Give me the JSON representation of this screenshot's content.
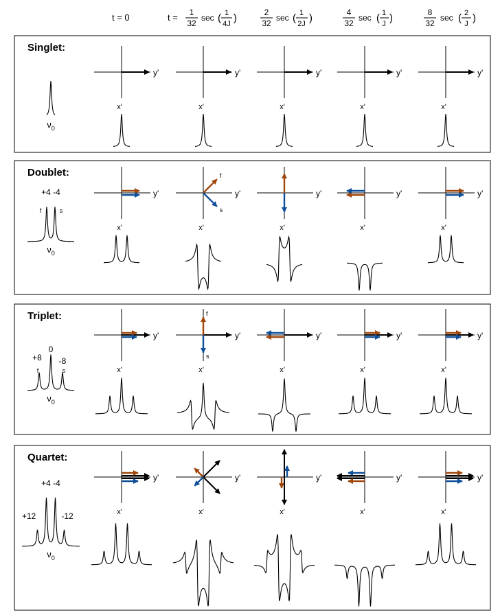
{
  "header": {
    "col0": "t = 0",
    "col1": {
      "prefix": "t = ",
      "num": "1",
      "den": "32",
      "unit": "sec",
      "pnum": "1",
      "pden": "4J"
    },
    "col2": {
      "num": "2",
      "den": "32",
      "unit": "sec",
      "pnum": "1",
      "pden": "2J"
    },
    "col3": {
      "num": "4",
      "den": "32",
      "unit": "sec",
      "pnum": "1",
      "pden": "J"
    },
    "col4": {
      "num": "8",
      "den": "32",
      "unit": "sec",
      "pnum": "2",
      "pden": "J"
    }
  },
  "axis_labels": {
    "y": "y'",
    "x": "x'"
  },
  "colors": {
    "fast": "#a0460a",
    "slow": "#0f4f9a",
    "total": "#000000"
  },
  "panels": [
    {
      "id": "singlet",
      "title": "Singlet:",
      "reference": {
        "center_label": "ν0",
        "intensity_labels": []
      },
      "vectors": [
        [
          {
            "kind": "total",
            "angle": 0,
            "len": 40
          }
        ],
        [
          {
            "kind": "total",
            "angle": 0,
            "len": 40
          }
        ],
        [
          {
            "kind": "total",
            "angle": 0,
            "len": 40
          }
        ],
        [
          {
            "kind": "total",
            "angle": 0,
            "len": 40
          }
        ],
        [
          {
            "kind": "total",
            "angle": 0,
            "len": 40
          }
        ]
      ],
      "spectra": [
        [
          {
            "x": 0,
            "h": 1
          }
        ],
        [
          {
            "x": 0,
            "h": 1
          }
        ],
        [
          {
            "x": 0,
            "h": 1
          }
        ],
        [
          {
            "x": 0,
            "h": 1
          }
        ],
        [
          {
            "x": 0,
            "h": 1
          }
        ]
      ]
    },
    {
      "id": "doublet",
      "title": "Doublet:",
      "reference": {
        "center_label": "ν0",
        "top_label": "+4 -4",
        "line_labels": [
          "f",
          "s"
        ]
      },
      "vectors": [
        [
          {
            "kind": "fast",
            "angle": 0,
            "len": 26,
            "off": -3
          },
          {
            "kind": "slow",
            "angle": 0,
            "len": 26,
            "off": 3
          }
        ],
        [
          {
            "kind": "fast",
            "angle": 45,
            "len": 28,
            "label": "f"
          },
          {
            "kind": "slow",
            "angle": -45,
            "len": 28,
            "label": "s"
          }
        ],
        [
          {
            "kind": "fast",
            "angle": 90,
            "len": 28
          },
          {
            "kind": "slow",
            "angle": -90,
            "len": 28
          }
        ],
        [
          {
            "kind": "fast",
            "angle": 180,
            "len": 26,
            "off": -3
          },
          {
            "kind": "slow",
            "angle": 180,
            "len": 26,
            "off": 3
          }
        ],
        [
          {
            "kind": "fast",
            "angle": 0,
            "len": 26,
            "off": -3
          },
          {
            "kind": "slow",
            "angle": 0,
            "len": 26,
            "off": 3
          }
        ]
      ],
      "spectra": [
        [
          {
            "x": -1,
            "h": 1
          },
          {
            "x": 1,
            "h": 1
          }
        ],
        [
          {
            "x": -1,
            "h": 1,
            "disp": 1
          },
          {
            "x": 1,
            "h": 1,
            "disp": -1
          }
        ],
        [
          {
            "x": -1,
            "h": 1,
            "disp": -1
          },
          {
            "x": 1,
            "h": 1,
            "disp": 1
          }
        ],
        [
          {
            "x": -1,
            "h": -1
          },
          {
            "x": 1,
            "h": -1
          }
        ],
        [
          {
            "x": -1,
            "h": 1
          },
          {
            "x": 1,
            "h": 1
          }
        ]
      ]
    },
    {
      "id": "triplet",
      "title": "Triplet:",
      "reference": {
        "center_label": "ν0",
        "top_labels": [
          "+8",
          "0",
          "-8"
        ],
        "line_labels": [
          "f",
          "s"
        ]
      },
      "vectors": [
        [
          {
            "kind": "total",
            "angle": 0,
            "len": 40
          },
          {
            "kind": "fast",
            "angle": 0,
            "len": 22,
            "off": -3
          },
          {
            "kind": "slow",
            "angle": 0,
            "len": 22,
            "off": 3
          }
        ],
        [
          {
            "kind": "total",
            "angle": 0,
            "len": 40
          },
          {
            "kind": "fast",
            "angle": 90,
            "len": 26,
            "label": "f"
          },
          {
            "kind": "slow",
            "angle": -90,
            "len": 26,
            "label": "s"
          }
        ],
        [
          {
            "kind": "total",
            "angle": 0,
            "len": 40
          },
          {
            "kind": "fast",
            "angle": 180,
            "len": 26,
            "off": -3
          },
          {
            "kind": "slow",
            "angle": 180,
            "len": 26,
            "off": 3
          }
        ],
        [
          {
            "kind": "total",
            "angle": 0,
            "len": 40
          },
          {
            "kind": "fast",
            "angle": 0,
            "len": 22,
            "off": -3
          },
          {
            "kind": "slow",
            "angle": 0,
            "len": 22,
            "off": 3
          }
        ],
        [
          {
            "kind": "total",
            "angle": 0,
            "len": 40
          },
          {
            "kind": "fast",
            "angle": 0,
            "len": 22,
            "off": -3
          },
          {
            "kind": "slow",
            "angle": 0,
            "len": 22,
            "off": 3
          }
        ]
      ],
      "spectra": [
        [
          {
            "x": -1,
            "h": 0.5
          },
          {
            "x": 0,
            "h": 1
          },
          {
            "x": 1,
            "h": 0.5
          }
        ],
        [
          {
            "x": -1,
            "h": 0.5,
            "disp": 1
          },
          {
            "x": 0,
            "h": 1
          },
          {
            "x": 1,
            "h": 0.5,
            "disp": -1
          }
        ],
        [
          {
            "x": -1,
            "h": -0.5
          },
          {
            "x": 0,
            "h": 1
          },
          {
            "x": 1,
            "h": -0.5
          }
        ],
        [
          {
            "x": -1,
            "h": 0.5
          },
          {
            "x": 0,
            "h": 1
          },
          {
            "x": 1,
            "h": 0.5
          }
        ],
        [
          {
            "x": -1,
            "h": 0.5
          },
          {
            "x": 0,
            "h": 1
          },
          {
            "x": 1,
            "h": 0.5
          }
        ]
      ]
    },
    {
      "id": "quartet",
      "title": "Quartet:",
      "reference": {
        "center_label": "ν0",
        "top_label": "+4 -4",
        "side_labels": [
          "+12",
          "-12"
        ]
      },
      "vectors": [
        [
          {
            "kind": "total",
            "angle": 0,
            "len": 40,
            "off": -2
          },
          {
            "kind": "total",
            "angle": 0,
            "len": 40,
            "off": 2
          },
          {
            "kind": "fast",
            "angle": 0,
            "len": 24,
            "off": -6
          },
          {
            "kind": "slow",
            "angle": 0,
            "len": 24,
            "off": 6
          }
        ],
        [
          {
            "kind": "total",
            "angle": 45,
            "len": 34
          },
          {
            "kind": "total",
            "angle": -45,
            "len": 34
          },
          {
            "kind": "fast",
            "angle": 135,
            "len": 18
          },
          {
            "kind": "slow",
            "angle": -135,
            "len": 18
          }
        ],
        [
          {
            "kind": "total",
            "angle": 90,
            "len": 40
          },
          {
            "kind": "total",
            "angle": -90,
            "len": 40
          },
          {
            "kind": "slow",
            "angle": 90,
            "len": 16,
            "off": 4
          },
          {
            "kind": "fast",
            "angle": -90,
            "len": 16,
            "off": 4
          }
        ],
        [
          {
            "kind": "total",
            "angle": 180,
            "len": 40,
            "off": -2
          },
          {
            "kind": "total",
            "angle": 180,
            "len": 40,
            "off": 2
          },
          {
            "kind": "fast",
            "angle": 180,
            "len": 24,
            "off": -6
          },
          {
            "kind": "slow",
            "angle": 180,
            "len": 24,
            "off": 6
          }
        ],
        [
          {
            "kind": "total",
            "angle": 0,
            "len": 40,
            "off": -2
          },
          {
            "kind": "total",
            "angle": 0,
            "len": 40,
            "off": 2
          },
          {
            "kind": "fast",
            "angle": 0,
            "len": 24,
            "off": -6
          },
          {
            "kind": "slow",
            "angle": 0,
            "len": 24,
            "off": 6
          }
        ]
      ],
      "spectra": [
        [
          {
            "x": -1.5,
            "h": 0.33
          },
          {
            "x": -0.5,
            "h": 1
          },
          {
            "x": 0.5,
            "h": 1
          },
          {
            "x": 1.5,
            "h": 0.33
          }
        ],
        [
          {
            "x": -1.5,
            "h": 0.33,
            "disp": 1
          },
          {
            "x": -0.5,
            "h": 1,
            "disp": 1
          },
          {
            "x": 0.5,
            "h": 1,
            "disp": -1
          },
          {
            "x": 1.5,
            "h": 0.33,
            "disp": -1
          }
        ],
        [
          {
            "x": -1.5,
            "h": 0.33,
            "disp": -1
          },
          {
            "x": -0.5,
            "h": 1,
            "disp": 1
          },
          {
            "x": 0.5,
            "h": 1,
            "disp": -1
          },
          {
            "x": 1.5,
            "h": 0.33,
            "disp": 1
          }
        ],
        [
          {
            "x": -1.5,
            "h": -0.33
          },
          {
            "x": -0.5,
            "h": -1
          },
          {
            "x": 0.5,
            "h": -1
          },
          {
            "x": 1.5,
            "h": -0.33
          }
        ],
        [
          {
            "x": -1.5,
            "h": 0.33
          },
          {
            "x": -0.5,
            "h": 1
          },
          {
            "x": 0.5,
            "h": 1
          },
          {
            "x": 1.5,
            "h": 0.33
          }
        ]
      ]
    }
  ]
}
